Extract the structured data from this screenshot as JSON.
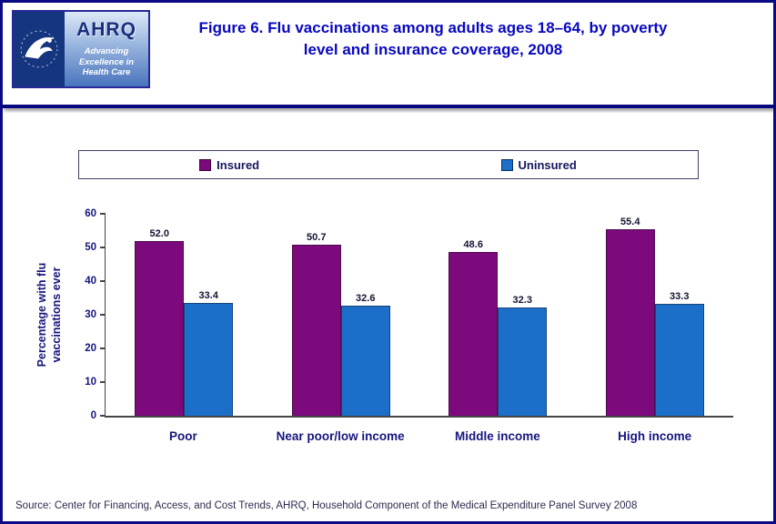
{
  "header": {
    "title": "Figure 6. Flu vaccinations among adults ages 18–64, by poverty level and insurance coverage, 2008",
    "logo": {
      "acronym": "AHRQ",
      "tagline": "Advancing\nExcellence in\nHealth Care"
    }
  },
  "chart_data": {
    "type": "bar",
    "categories": [
      "Poor",
      "Near poor/low income",
      "Middle income",
      "High income"
    ],
    "series": [
      {
        "name": "Insured",
        "color": "#7D0A7D",
        "values": [
          52.0,
          50.7,
          48.6,
          55.4
        ]
      },
      {
        "name": "Uninsured",
        "color": "#1B6FC8",
        "values": [
          33.4,
          32.6,
          32.3,
          33.3
        ]
      }
    ],
    "title": "Figure 6. Flu vaccinations among adults ages 18–64, by poverty level and insurance coverage, 2008",
    "xlabel": "",
    "ylabel": "Percentage with flu vaccinations ever",
    "ylim": [
      0,
      60
    ],
    "ytick_interval": 10,
    "grid": false,
    "legend_position": "top",
    "value_labels": true
  },
  "source": "Source: Center for Financing, Access, and Cost Trends, AHRQ, Household Component of the Medical Expenditure Panel Survey 2008",
  "colors": {
    "accent_navy": "#0a0a85",
    "title_blue": "#0808c0",
    "insured": "#7D0A7D",
    "uninsured": "#1B6FC8"
  }
}
